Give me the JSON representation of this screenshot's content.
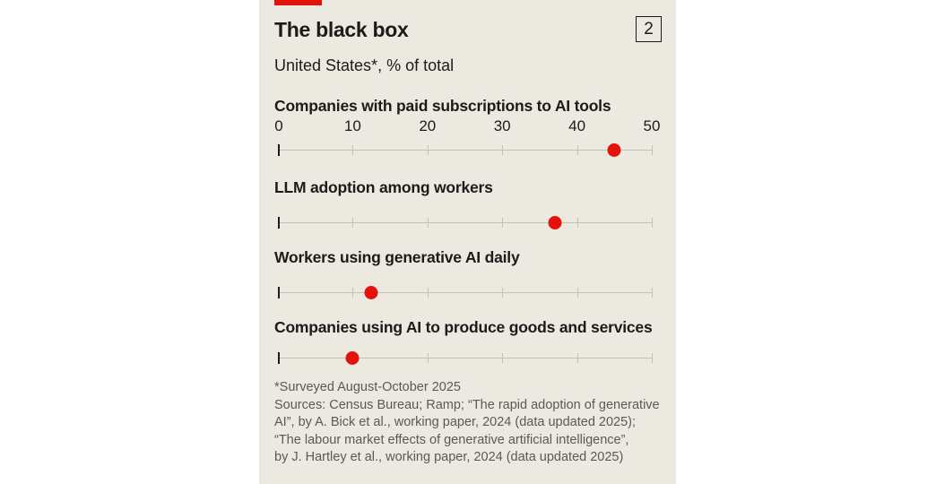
{
  "chart": {
    "badge": "2",
    "title": "The black box",
    "subtitle": "United States*, % of total",
    "axis": {
      "min": 0,
      "max": 50,
      "ticks": [
        "0",
        "10",
        "20",
        "30",
        "40",
        "50"
      ]
    },
    "accent_color": "#e3120b",
    "background_color": "#ebe9e0",
    "footnote": "*Surveyed August-October 2025",
    "sources": [
      "Sources: Census Bureau; Ramp; “The rapid adoption of generative",
      "AI”, by A. Bick et al., working paper, 2024 (data updated 2025);",
      "“The labour market effects of generative artificial intelligence”,",
      "by J. Hartley et al., working paper, 2024 (data updated 2025)"
    ]
  },
  "chart_data": {
    "type": "scatter",
    "title": "The black box",
    "subtitle": "United States*, % of total",
    "xlabel": "% of total",
    "ylabel": "",
    "xlim": [
      0,
      50
    ],
    "x_ticks": [
      0,
      10,
      20,
      30,
      40,
      50
    ],
    "grid": false,
    "legend": null,
    "categories": [
      "Companies with paid subscriptions to AI tools",
      "LLM adoption among workers",
      "Workers using generative AI daily",
      "Companies using AI to produce goods and services"
    ],
    "values": [
      45,
      37,
      12.5,
      10
    ],
    "annotations": [
      "*Surveyed August-October 2025"
    ]
  }
}
